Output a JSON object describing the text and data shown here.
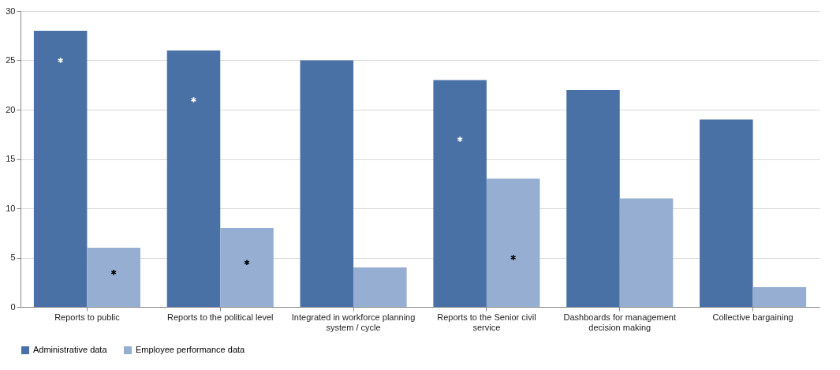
{
  "chart_data": {
    "type": "bar",
    "categories": [
      "Reports to public",
      "Reports to the political level",
      "Integrated in workforce planning system / cycle",
      "Reports to the Senior civil service",
      "Dashboards for management decision making",
      "Collective bargaining"
    ],
    "series": [
      {
        "name": "Administrative data",
        "color": "#4a71a6",
        "values": [
          28,
          26,
          25,
          23,
          22,
          19
        ]
      },
      {
        "name": "Employee performance data",
        "color": "#95aed2",
        "values": [
          6,
          8,
          4,
          13,
          11,
          2
        ]
      },
      {
        "type": "scatter",
        "color": "#ffffff",
        "marker": "cross",
        "values": [
          25,
          21,
          null,
          17,
          null,
          null
        ]
      },
      {
        "type": "scatter",
        "color": "#000000",
        "marker": "cross",
        "values": [
          3.5,
          4.5,
          null,
          5,
          null,
          null
        ]
      }
    ],
    "ylim": [
      0,
      30
    ],
    "yticks": [
      0,
      5,
      10,
      15,
      20,
      25,
      30
    ],
    "grid": "y",
    "legend": "bottom"
  }
}
